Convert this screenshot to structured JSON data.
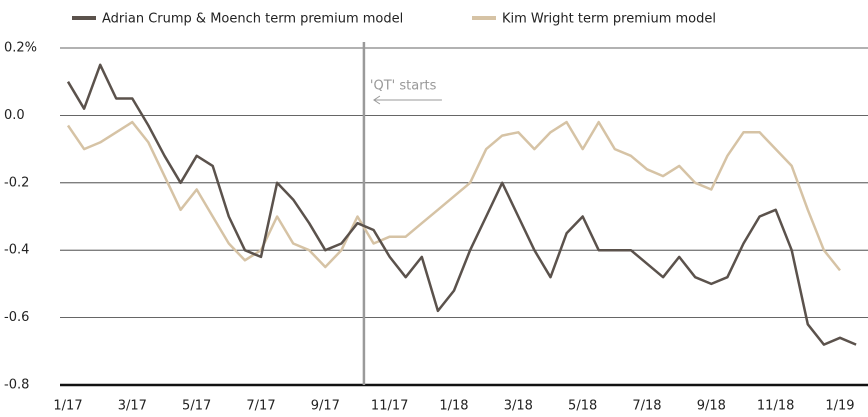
{
  "chart_data": {
    "type": "line",
    "categories": [
      "1/17",
      null,
      null,
      null,
      "3/17",
      null,
      null,
      null,
      "5/17",
      null,
      null,
      null,
      "7/17",
      null,
      null,
      null,
      "9/17",
      null,
      null,
      null,
      "11/17",
      null,
      null,
      null,
      "1/18",
      null,
      null,
      null,
      "3/18",
      null,
      null,
      null,
      "5/18",
      null,
      null,
      null,
      "7/18",
      null,
      null,
      null,
      "9/18",
      null,
      null,
      null,
      "11/18",
      null,
      null,
      null,
      "1/19",
      null
    ],
    "series": [
      {
        "name": "Adrian Crump & Moench term premium model",
        "color": "#5b524c",
        "values": [
          0.1,
          0.02,
          0.15,
          0.05,
          0.05,
          -0.03,
          -0.12,
          -0.2,
          -0.12,
          -0.15,
          -0.3,
          -0.4,
          -0.42,
          -0.2,
          -0.25,
          -0.32,
          -0.4,
          -0.38,
          -0.32,
          -0.34,
          -0.42,
          -0.48,
          -0.42,
          -0.58,
          -0.52,
          -0.4,
          -0.3,
          -0.2,
          -0.3,
          -0.4,
          -0.48,
          -0.35,
          -0.3,
          -0.4,
          -0.4,
          -0.4,
          -0.44,
          -0.48,
          -0.42,
          -0.48,
          -0.5,
          -0.48,
          -0.38,
          -0.3,
          -0.28,
          -0.4,
          -0.62,
          -0.68,
          -0.66,
          -0.68
        ]
      },
      {
        "name": "Kim Wright term premium model",
        "color": "#d6c3a5",
        "values": [
          -0.03,
          -0.1,
          -0.08,
          -0.05,
          -0.02,
          -0.08,
          -0.18,
          -0.28,
          -0.22,
          -0.3,
          -0.38,
          -0.43,
          -0.4,
          -0.3,
          -0.38,
          -0.4,
          -0.45,
          -0.4,
          -0.3,
          -0.38,
          -0.36,
          -0.36,
          -0.32,
          -0.28,
          -0.24,
          -0.2,
          -0.1,
          -0.06,
          -0.05,
          -0.1,
          -0.05,
          -0.02,
          -0.1,
          -0.02,
          -0.1,
          -0.12,
          -0.16,
          -0.18,
          -0.15,
          -0.2,
          -0.22,
          -0.12,
          -0.05,
          -0.05,
          -0.1,
          -0.15,
          -0.28,
          -0.4,
          -0.46,
          null
        ]
      }
    ],
    "ylim": [
      -0.8,
      0.2
    ],
    "yticks": [
      {
        "value": 0.2,
        "label": "0.2%"
      },
      {
        "value": 0,
        "label": "0.0"
      },
      -0.2,
      -0.4,
      -0.6,
      -0.8
    ],
    "grid": true,
    "annotation": {
      "text": "'QT' starts",
      "x": 18.4
    }
  }
}
